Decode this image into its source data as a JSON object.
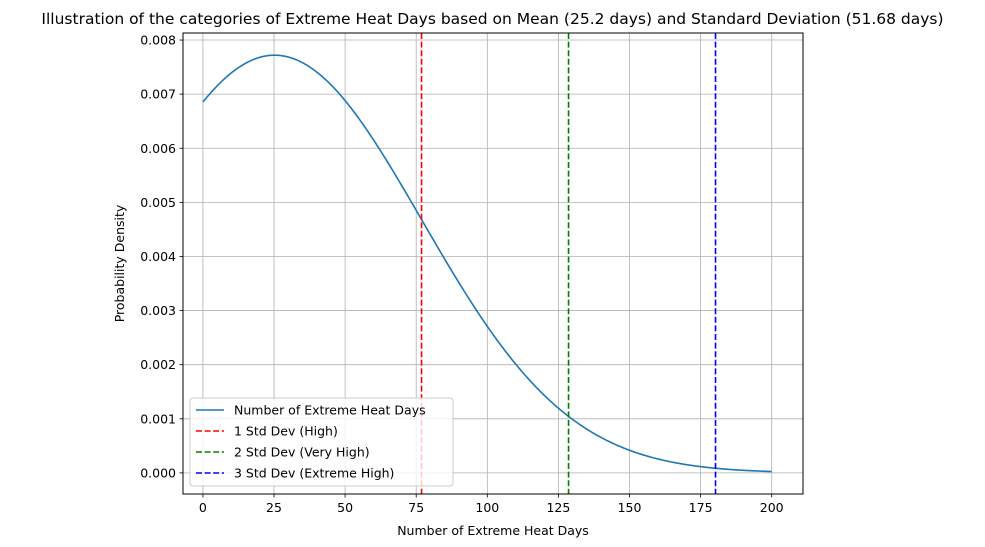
{
  "chart_data": {
    "type": "line",
    "title": "Illustration of the categories of Extreme Heat Days based on Mean (25.2 days) and Standard Deviation (51.68 days)",
    "xlabel": "Number of Extreme Heat Days",
    "ylabel": "Probability Density",
    "xlim": [
      -7,
      211
    ],
    "ylim": [
      -0.00039,
      0.00813
    ],
    "x_ticks": [
      0,
      25,
      50,
      75,
      100,
      125,
      150,
      175,
      200
    ],
    "y_ticks": [
      0.0,
      0.001,
      0.002,
      0.003,
      0.004,
      0.005,
      0.006,
      0.007,
      0.008
    ],
    "y_tick_labels": [
      "0.000",
      "0.001",
      "0.002",
      "0.003",
      "0.004",
      "0.005",
      "0.006",
      "0.007",
      "0.008"
    ],
    "grid": true,
    "legend_position": "lower-left",
    "series": [
      {
        "name": "Number of Extreme Heat Days",
        "color": "#1f77b4",
        "style": "solid",
        "distribution": "normal",
        "mean": 25.2,
        "std": 51.68,
        "x_range": [
          0,
          200
        ]
      }
    ],
    "vlines": [
      {
        "name": "1 Std Dev (High)",
        "x": 76.88,
        "color": "#ff0000",
        "style": "dashed"
      },
      {
        "name": "2 Std Dev (Very High)",
        "x": 128.56,
        "color": "#008000",
        "style": "dashed"
      },
      {
        "name": "3 Std Dev (Extreme High)",
        "x": 180.24,
        "color": "#0000ff",
        "style": "dashed"
      }
    ]
  }
}
